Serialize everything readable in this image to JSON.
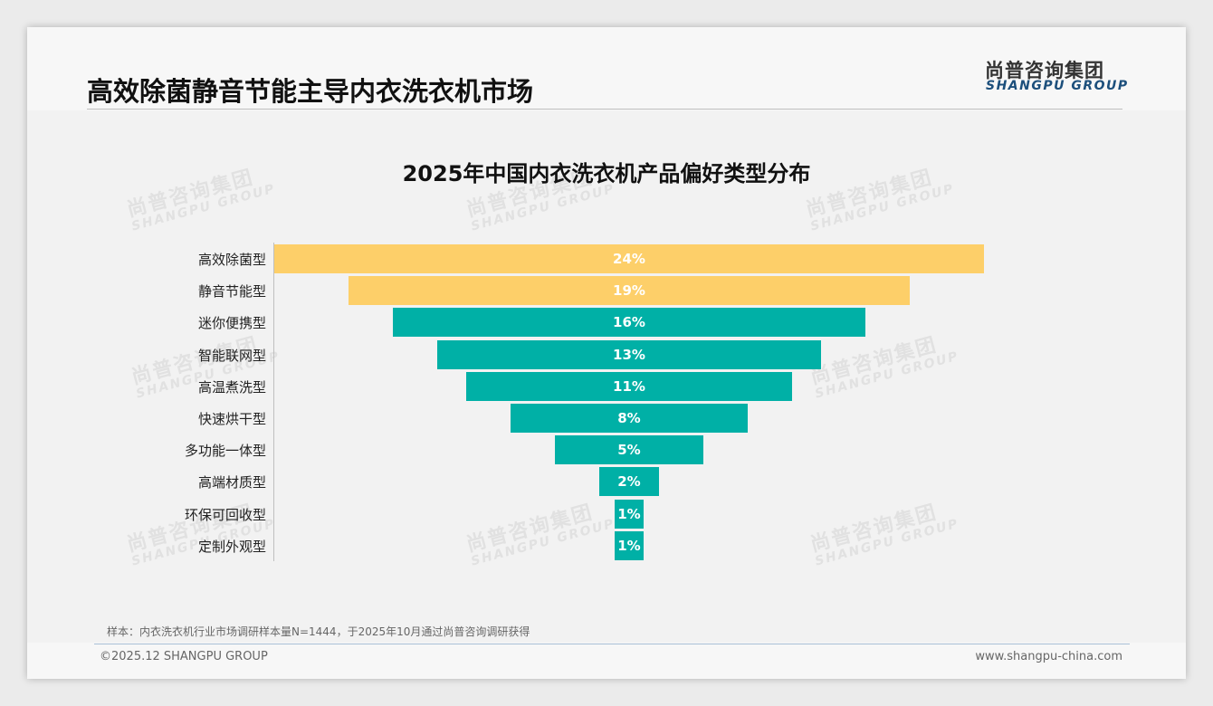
{
  "header": {
    "title": "高效除菌静音节能主导内衣洗衣机市场",
    "logo_cn": "尚普咨询集团",
    "logo_en": "SHANGPU GROUP"
  },
  "watermark": {
    "cn": "尚普咨询集团",
    "en": "SHANGPU GROUP"
  },
  "chart_data": {
    "type": "bar",
    "subtype": "funnel",
    "title": "2025年中国内衣洗衣机产品偏好类型分布",
    "categories": [
      "高效除菌型",
      "静音节能型",
      "迷你便携型",
      "智能联网型",
      "高温煮洗型",
      "快速烘干型",
      "多功能一体型",
      "高端材质型",
      "环保可回收型",
      "定制外观型"
    ],
    "values": [
      24,
      19,
      16,
      13,
      11,
      8,
      5,
      2,
      1,
      1
    ],
    "labels": [
      "24%",
      "19%",
      "16%",
      "13%",
      "11%",
      "8%",
      "5%",
      "2%",
      "1%",
      "1%"
    ],
    "colors": [
      "#FDCF69",
      "#FDCF69",
      "#00B0A6",
      "#00B0A6",
      "#00B0A6",
      "#00B0A6",
      "#00B0A6",
      "#00B0A6",
      "#00B0A6",
      "#00B0A6"
    ],
    "unit": "%"
  },
  "footer": {
    "note": "样本：内衣洗衣机行业市场调研样本量N=1444，于2025年10月通过尚普咨询调研获得",
    "copyright": "©2025.12 SHANGPU GROUP",
    "url": "www.shangpu-china.com"
  }
}
